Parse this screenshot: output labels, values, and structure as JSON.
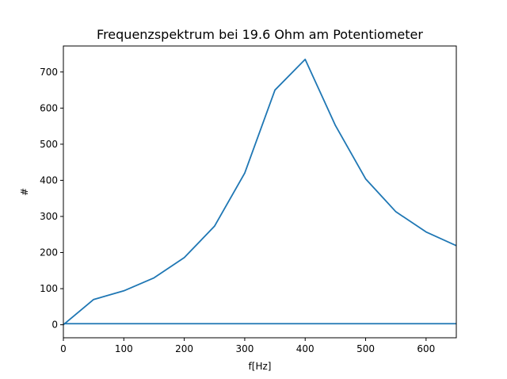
{
  "chart_data": {
    "type": "line",
    "title": "Frequenzspektrum bei 19.6 Ohm am Potentiometer",
    "xlabel": "f[Hz]",
    "ylabel": "#",
    "xlim": [
      0,
      650
    ],
    "ylim": [
      -36,
      772
    ],
    "xticks": [
      0,
      100,
      200,
      300,
      400,
      500,
      600
    ],
    "yticks": [
      0,
      100,
      200,
      300,
      400,
      500,
      600,
      700
    ],
    "xtick_labels": [
      "0",
      "100",
      "200",
      "300",
      "400",
      "500",
      "600"
    ],
    "ytick_labels": [
      "0",
      "100",
      "200",
      "300",
      "400",
      "500",
      "600",
      "700"
    ],
    "grid": false,
    "series": [
      {
        "color": "#1f77b4",
        "x": [
          0,
          50,
          100,
          150,
          200,
          250,
          300,
          350,
          400,
          450,
          500,
          550,
          600,
          650
        ],
        "y": [
          0,
          70,
          94,
          130,
          186,
          273,
          420,
          650,
          735,
          552,
          404,
          313,
          257,
          219
        ]
      },
      {
        "color": "#1f77b4",
        "x": [
          0,
          650
        ],
        "y": [
          3,
          3
        ]
      }
    ]
  }
}
